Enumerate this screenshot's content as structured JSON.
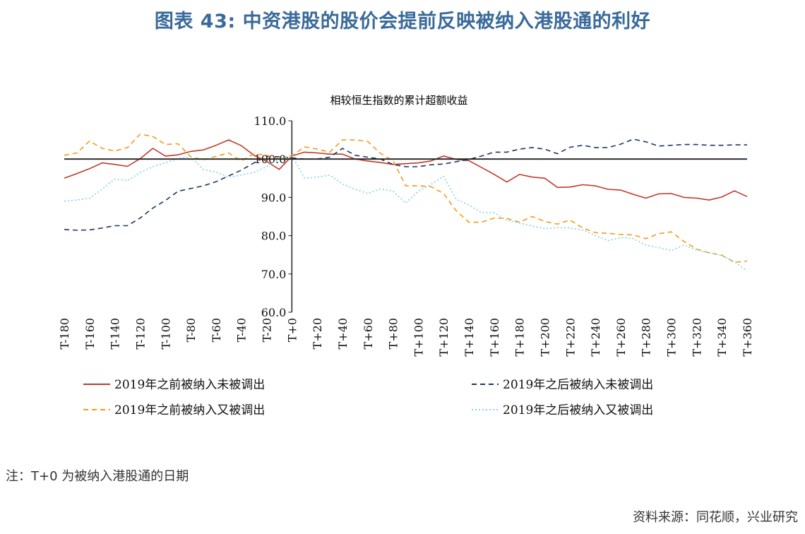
{
  "figure": {
    "title": "图表 43: 中资港股的股价会提前反映被纳入港股通的利好",
    "note": "注：T+0 为被纳入港股通的日期",
    "source": "资料来源：同花顺，兴业研究"
  },
  "chart_data": {
    "type": "line",
    "title": "相较恒生指数的累计超额收益",
    "ylim": [
      60,
      110
    ],
    "yticks": [
      "60.0",
      "70.0",
      "80.0",
      "90.0",
      "100.0",
      "110.0"
    ],
    "xticks": [
      "T-180",
      "T-160",
      "T-140",
      "T-120",
      "T-100",
      "T-80",
      "T-60",
      "T-40",
      "T-20",
      "T+0",
      "T+20",
      "T+40",
      "T+60",
      "T+80",
      "T+100",
      "T+120",
      "T+140",
      "T+160",
      "T+180",
      "T+200",
      "T+220",
      "T+240",
      "T+260",
      "T+280",
      "T+300",
      "T+320",
      "T+340",
      "T+360"
    ],
    "x": [
      -180,
      -170,
      -160,
      -150,
      -140,
      -130,
      -120,
      -110,
      -100,
      -90,
      -80,
      -70,
      -60,
      -50,
      -40,
      -30,
      -20,
      -10,
      0,
      10,
      20,
      30,
      40,
      50,
      60,
      70,
      80,
      90,
      100,
      110,
      120,
      130,
      140,
      150,
      160,
      170,
      180,
      190,
      200,
      210,
      220,
      230,
      240,
      250,
      260,
      270,
      280,
      290,
      300,
      310,
      320,
      330,
      340,
      350,
      360
    ],
    "reference_line": 100,
    "grid": false,
    "legend_position": "bottom",
    "series": [
      {
        "name": "2019年之前被纳入未被调出",
        "color": "#c0392b",
        "dash": "solid",
        "values": [
          95.0,
          96.2,
          97.5,
          99.0,
          98.6,
          98.1,
          100.1,
          102.8,
          100.8,
          101.1,
          102.0,
          102.4,
          103.6,
          105.0,
          103.5,
          101.0,
          99.4,
          97.3,
          100.8,
          101.8,
          101.6,
          101.3,
          101.3,
          100.0,
          99.5,
          99.1,
          98.6,
          98.8,
          99.0,
          99.5,
          100.8,
          99.9,
          99.6,
          97.8,
          96.0,
          94.0,
          96.0,
          95.3,
          95.0,
          92.6,
          92.7,
          93.3,
          93.0,
          92.1,
          91.9,
          90.8,
          89.8,
          90.9,
          91.0,
          90.0,
          89.8,
          89.3,
          90.1,
          91.7,
          90.2
        ]
      },
      {
        "name": "2019年之后被纳入未被调出",
        "color": "#1f3864",
        "dash": "dashed",
        "values": [
          81.6,
          81.4,
          81.5,
          82.0,
          82.6,
          82.6,
          84.6,
          87.2,
          89.2,
          91.6,
          92.3,
          93.0,
          94.1,
          95.6,
          97.1,
          99.0,
          100.7,
          100.6,
          100.3,
          100.0,
          100.0,
          100.5,
          102.8,
          101.0,
          100.5,
          100.0,
          98.6,
          98.0,
          98.0,
          98.5,
          98.7,
          99.3,
          99.9,
          100.8,
          101.8,
          101.8,
          102.6,
          103.0,
          102.6,
          101.4,
          103.1,
          103.6,
          103.0,
          103.0,
          103.9,
          105.2,
          104.5,
          103.4,
          103.6,
          103.8,
          103.8,
          103.6,
          103.6,
          103.7,
          103.7
        ]
      },
      {
        "name": "2019年之前被纳入又被调出",
        "color": "#f39c12",
        "dash": "dashed",
        "values": [
          101.0,
          101.6,
          104.7,
          102.8,
          102.1,
          103.0,
          106.5,
          105.9,
          103.8,
          104.0,
          100.6,
          99.8,
          100.7,
          101.6,
          99.5,
          101.4,
          101.0,
          100.0,
          100.8,
          103.2,
          102.6,
          101.8,
          105.0,
          105.0,
          104.6,
          101.5,
          99.6,
          93.0,
          93.0,
          92.8,
          91.0,
          86.5,
          83.5,
          83.5,
          84.6,
          84.5,
          83.5,
          85.0,
          83.7,
          83.0,
          84.1,
          82.0,
          80.8,
          80.6,
          80.3,
          80.2,
          79.2,
          80.5,
          81.0,
          78.5,
          76.5,
          75.5,
          74.9,
          73.0,
          73.4
        ]
      },
      {
        "name": "2019年之后被纳入又被调出",
        "color": "#7fd3e8",
        "dash": "dotted",
        "values": [
          89.0,
          89.3,
          89.8,
          92.1,
          94.8,
          94.4,
          96.5,
          98.0,
          99.0,
          100.2,
          100.6,
          97.3,
          96.6,
          95.3,
          95.8,
          96.5,
          98.0,
          100.0,
          101.0,
          95.0,
          95.3,
          95.8,
          93.5,
          92.1,
          91.0,
          92.2,
          91.6,
          88.5,
          91.6,
          93.4,
          95.5,
          89.5,
          88.0,
          86.0,
          86.0,
          84.0,
          83.3,
          82.5,
          81.8,
          82.1,
          82.0,
          81.5,
          80.0,
          78.7,
          79.5,
          79.2,
          77.5,
          76.9,
          76.1,
          77.5,
          76.3,
          75.5,
          74.8,
          73.2,
          70.8
        ]
      }
    ]
  }
}
